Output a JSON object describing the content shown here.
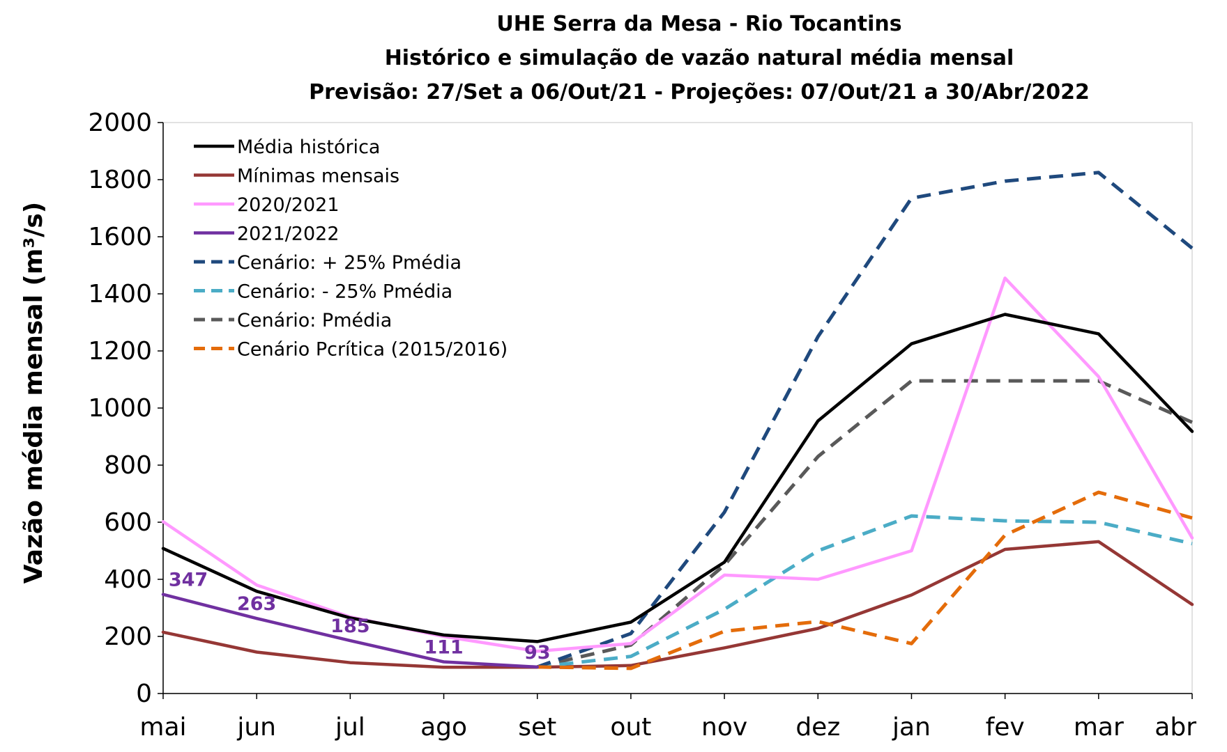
{
  "chart_data": {
    "type": "line",
    "title_lines": [
      "UHE Serra da Mesa - Rio Tocantins",
      "Histórico e simulação de vazão natural média mensal",
      "Previsão: 27/Set a 06/Out/21 - Projeções:  07/Out/21 a 30/Abr/2022"
    ],
    "ylabel": "Vazão média mensal (m³/s)",
    "xlabel": "",
    "categories": [
      "mai",
      "jun",
      "jul",
      "ago",
      "set",
      "out",
      "nov",
      "dez",
      "jan",
      "fev",
      "mar",
      "abr"
    ],
    "ylim": [
      0,
      2000
    ],
    "yticks": [
      0,
      200,
      400,
      600,
      800,
      1000,
      1200,
      1400,
      1600,
      1800,
      2000
    ],
    "grid": false,
    "legend_position": "top-left",
    "series": [
      {
        "name": "Média histórica",
        "color": "#000000",
        "dashed": false,
        "values": [
          508,
          358,
          265,
          205,
          182,
          250,
          460,
          955,
          1225,
          1328,
          1260,
          918
        ]
      },
      {
        "name": "Mínimas mensais",
        "color": "#953735",
        "dashed": false,
        "values": [
          215,
          145,
          108,
          92,
          92,
          98,
          160,
          228,
          345,
          505,
          532,
          312
        ]
      },
      {
        "name": "2020/2021",
        "color": "#ff99ff",
        "dashed": false,
        "values": [
          602,
          380,
          268,
          200,
          148,
          175,
          415,
          400,
          500,
          1455,
          1110,
          545
        ]
      },
      {
        "name": "2021/2022",
        "color": "#7030a0",
        "dashed": false,
        "values": [
          347,
          263,
          185,
          111,
          93,
          null,
          null,
          null,
          null,
          null,
          null,
          null
        ],
        "data_labels": [
          "347",
          "263",
          "185",
          "111",
          "93"
        ]
      },
      {
        "name": "Cenário: + 25% Pmédia",
        "color": "#1f497d",
        "dashed": true,
        "values": [
          null,
          null,
          null,
          null,
          93,
          210,
          635,
          1250,
          1735,
          1795,
          1825,
          1560
        ]
      },
      {
        "name": "Cenário: - 25% Pmédia",
        "color": "#4bacc6",
        "dashed": true,
        "values": [
          null,
          null,
          null,
          null,
          93,
          130,
          295,
          500,
          622,
          605,
          600,
          525
        ]
      },
      {
        "name": "Cenário: Pmédia",
        "color": "#595959",
        "dashed": true,
        "values": [
          null,
          null,
          null,
          null,
          93,
          170,
          450,
          830,
          1095,
          1095,
          1095,
          950
        ]
      },
      {
        "name": "Cenário Pcrítica (2015/2016)",
        "color": "#e46c0a",
        "dashed": true,
        "values": [
          null,
          null,
          null,
          null,
          93,
          88,
          218,
          252,
          175,
          555,
          705,
          615
        ]
      }
    ]
  }
}
